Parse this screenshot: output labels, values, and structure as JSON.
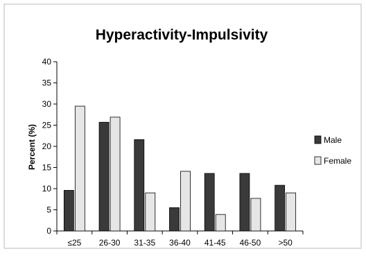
{
  "chart_data": {
    "type": "bar",
    "title": "Hyperactivity-Impulsivity",
    "xlabel": "",
    "ylabel": "Percent (%)",
    "ylim": [
      0,
      40
    ],
    "yticks": [
      0,
      5,
      10,
      15,
      20,
      25,
      30,
      35,
      40
    ],
    "categories": [
      "≤25",
      "26-30",
      "31-35",
      "36-40",
      "41-45",
      "46-50",
      ">50"
    ],
    "series": [
      {
        "name": "Male",
        "color": "#3a3a3a",
        "values": [
          9.6,
          25.7,
          21.6,
          5.5,
          13.6,
          13.6,
          10.8
        ]
      },
      {
        "name": "Female",
        "color": "#e6e6e6",
        "values": [
          29.5,
          26.9,
          9.0,
          14.1,
          3.9,
          7.7,
          9.0
        ]
      }
    ],
    "grid": false,
    "legend_position": "right"
  }
}
